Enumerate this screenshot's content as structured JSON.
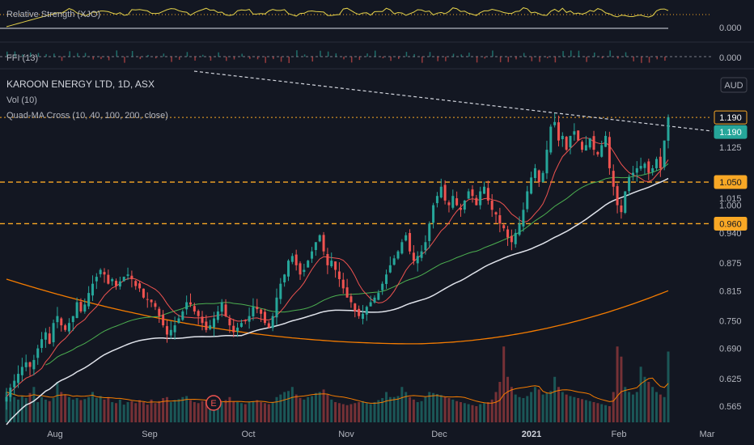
{
  "chart_data": {
    "type": "candlestick",
    "symbol_label": "KAROON ENERGY LTD, 1D, ASX",
    "currency": "AUD",
    "indicators": [
      {
        "name": "Vol (10)"
      },
      {
        "name": "Quad-MA Cross (10, 40, 100, 200, close)"
      }
    ],
    "sub_panes": [
      {
        "label": "Relative Strength (XJO)",
        "value": "0.000"
      },
      {
        "label": "FFI (13)",
        "value": "0.000"
      }
    ],
    "y_ticks": [
      "1.125",
      "1.015",
      "1.000",
      "0.940",
      "0.875",
      "0.815",
      "0.750",
      "0.690",
      "0.625",
      "0.565"
    ],
    "x_ticks": [
      "Aug",
      "Sep",
      "Oct",
      "Nov",
      "Dec",
      "2021",
      "Feb",
      "Mar"
    ],
    "price_tags": [
      {
        "value": "1.190",
        "style": "outline",
        "color": "#f9a825"
      },
      {
        "value": "1.190",
        "style": "filled",
        "color": "#26a69a"
      },
      {
        "value": "1.050",
        "style": "filled",
        "color": "#f9a825"
      },
      {
        "value": "0.960",
        "style": "filled",
        "color": "#f9a825"
      }
    ],
    "horizontal_levels": [
      1.19,
      1.05,
      0.96
    ],
    "earnings_marker": "E",
    "colors": {
      "up": "#26a69a",
      "down": "#ef5350",
      "ma10": "#ef5350",
      "ma40": "#4caf50",
      "ma100": "#e0e3eb",
      "ma200": "#f57c00",
      "level": "#f9a825",
      "rs_line": "#e6d34b"
    },
    "y_range": [
      0.53,
      1.29
    ],
    "closes": [
      0.585,
      0.605,
      0.62,
      0.635,
      0.65,
      0.66,
      0.65,
      0.665,
      0.69,
      0.71,
      0.725,
      0.7,
      0.745,
      0.76,
      0.74,
      0.73,
      0.745,
      0.76,
      0.79,
      0.77,
      0.785,
      0.81,
      0.83,
      0.845,
      0.86,
      0.85,
      0.83,
      0.84,
      0.825,
      0.835,
      0.845,
      0.85,
      0.84,
      0.825,
      0.82,
      0.8,
      0.795,
      0.79,
      0.78,
      0.76,
      0.74,
      0.72,
      0.73,
      0.74,
      0.755,
      0.77,
      0.79,
      0.785,
      0.77,
      0.76,
      0.745,
      0.73,
      0.74,
      0.755,
      0.77,
      0.79,
      0.76,
      0.74,
      0.725,
      0.735,
      0.745,
      0.75,
      0.76,
      0.78,
      0.775,
      0.765,
      0.745,
      0.735,
      0.76,
      0.8,
      0.83,
      0.85,
      0.88,
      0.89,
      0.87,
      0.85,
      0.86,
      0.88,
      0.9,
      0.92,
      0.935,
      0.9,
      0.87,
      0.88,
      0.86,
      0.84,
      0.82,
      0.8,
      0.79,
      0.77,
      0.76,
      0.765,
      0.78,
      0.79,
      0.8,
      0.81,
      0.83,
      0.85,
      0.87,
      0.885,
      0.9,
      0.92,
      0.935,
      0.9,
      0.88,
      0.89,
      0.9,
      0.92,
      0.96,
      1.0,
      1.02,
      1.04,
      1.01,
      1.0,
      1.02,
      1.0,
      0.99,
      1.01,
      1.03,
      1.02,
      1.0,
      1.03,
      1.04,
      1.01,
      0.99,
      0.98,
      0.96,
      0.95,
      0.93,
      0.92,
      0.94,
      0.96,
      0.99,
      1.03,
      1.06,
      1.08,
      1.05,
      1.07,
      1.12,
      1.17,
      1.18,
      1.14,
      1.15,
      1.12,
      1.15,
      1.16,
      1.14,
      1.12,
      1.13,
      1.145,
      1.12,
      1.11,
      1.13,
      1.15,
      1.08,
      1.04,
      1.0,
      0.985,
      1.03,
      1.06,
      1.07,
      1.08,
      1.085,
      1.09,
      1.07,
      1.08,
      1.1,
      1.08,
      1.14,
      1.19
    ],
    "volumes": [
      60,
      55,
      50,
      45,
      52,
      48,
      58,
      70,
      40,
      50,
      45,
      42,
      48,
      80,
      60,
      55,
      50,
      45,
      48,
      44,
      46,
      50,
      60,
      48,
      52,
      45,
      50,
      40,
      38,
      45,
      35,
      40,
      42,
      38,
      44,
      40,
      35,
      45,
      38,
      42,
      48,
      50,
      40,
      44,
      46,
      50,
      52,
      44,
      40,
      38,
      42,
      44,
      40,
      35,
      38,
      40,
      44,
      50,
      42,
      40,
      38,
      36,
      40,
      42,
      44,
      40,
      38,
      36,
      40,
      50,
      55,
      60,
      62,
      70,
      55,
      48,
      45,
      50,
      52,
      58,
      60,
      65,
      55,
      45,
      40,
      38,
      36,
      34,
      36,
      38,
      40,
      42,
      38,
      36,
      40,
      44,
      48,
      60,
      50,
      50,
      52,
      70,
      60,
      50,
      45,
      40,
      42,
      50,
      60,
      58,
      56,
      54,
      50,
      48,
      45,
      42,
      40,
      38,
      36,
      34,
      32,
      36,
      38,
      40,
      45,
      60,
      80,
      150,
      90,
      70,
      55,
      50,
      48,
      52,
      60,
      70,
      65,
      55,
      58,
      62,
      90,
      70,
      60,
      55,
      52,
      50,
      48,
      46,
      44,
      42,
      40,
      38,
      36,
      34,
      32,
      60,
      150,
      130,
      70,
      60,
      55,
      60,
      110,
      90,
      80,
      70,
      60,
      55,
      50,
      140
    ],
    "ma200": {
      "start": 0.84,
      "min": 0.7,
      "end": 0.815
    },
    "rs_baseline_label": "0.000",
    "ffi_baseline_label": "0.000"
  }
}
